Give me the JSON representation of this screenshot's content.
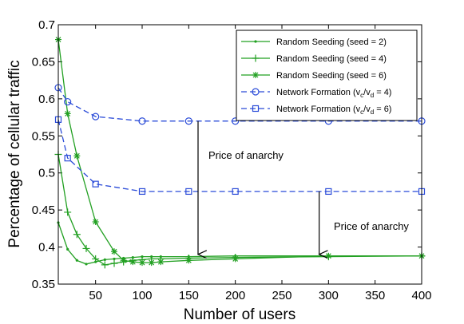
{
  "chart_data": {
    "type": "line",
    "xlabel": "Number of users",
    "ylabel": "Percentage of cellular traffic",
    "xlim": [
      10,
      400
    ],
    "ylim": [
      0.35,
      0.7
    ],
    "xticks": [
      50,
      100,
      150,
      200,
      250,
      300,
      350,
      400
    ],
    "yticks": [
      0.35,
      0.4,
      0.45,
      0.5,
      0.55,
      0.6,
      0.65,
      0.7
    ],
    "xtick_labels": [
      "50",
      "100",
      "150",
      "200",
      "250",
      "300",
      "350",
      "400"
    ],
    "ytick_labels": [
      "0.35",
      "0.4",
      "0.45",
      "0.5",
      "0.55",
      "0.6",
      "0.65",
      "0.7"
    ],
    "grid": false,
    "legend_position": "top-right",
    "colors": {
      "random": "#22a022",
      "network": "#2a4bd8"
    },
    "series": [
      {
        "name": "Random Seeding (seed = 2)",
        "style": "solid",
        "marker": "point",
        "color": "#22a022",
        "x": [
          10,
          20,
          30,
          40,
          50,
          60,
          70,
          80,
          90,
          100,
          110,
          120,
          150,
          200,
          300,
          400
        ],
        "y": [
          0.433,
          0.397,
          0.382,
          0.377,
          0.38,
          0.383,
          0.384,
          0.385,
          0.386,
          0.387,
          0.387,
          0.387,
          0.387,
          0.388,
          0.388,
          0.388
        ]
      },
      {
        "name": "Random Seeding (seed = 4)",
        "style": "solid",
        "marker": "plus",
        "color": "#22a022",
        "x": [
          10,
          20,
          30,
          40,
          50,
          60,
          70,
          80,
          90,
          100,
          110,
          120,
          150,
          200,
          300,
          400
        ],
        "y": [
          0.525,
          0.447,
          0.417,
          0.398,
          0.384,
          0.376,
          0.378,
          0.38,
          0.382,
          0.383,
          0.384,
          0.384,
          0.385,
          0.386,
          0.387,
          0.388
        ]
      },
      {
        "name": "Random Seeding (seed = 6)",
        "style": "solid",
        "marker": "star",
        "color": "#22a022",
        "x": [
          10,
          20,
          30,
          50,
          70,
          80,
          90,
          100,
          110,
          120,
          150,
          200,
          300,
          400
        ],
        "y": [
          0.68,
          0.58,
          0.523,
          0.434,
          0.394,
          0.382,
          0.38,
          0.379,
          0.379,
          0.38,
          0.382,
          0.384,
          0.388,
          0.388
        ]
      },
      {
        "name": "Network Formation (v_c/v_d = 4)",
        "style": "dashed",
        "marker": "circle",
        "color": "#2a4bd8",
        "x": [
          10,
          20,
          50,
          100,
          150,
          200,
          300,
          400
        ],
        "y": [
          0.615,
          0.596,
          0.576,
          0.57,
          0.57,
          0.57,
          0.57,
          0.57
        ]
      },
      {
        "name": "Network Formation (v_c/v_d = 6)",
        "style": "dashed",
        "marker": "square",
        "color": "#2a4bd8",
        "x": [
          10,
          20,
          50,
          100,
          150,
          200,
          300,
          400
        ],
        "y": [
          0.572,
          0.52,
          0.485,
          0.475,
          0.475,
          0.475,
          0.475,
          0.475
        ]
      }
    ],
    "legend_labels": [
      {
        "main": "Random Seeding (seed = 2)",
        "sub1": "",
        "mid": "",
        "sub2": "",
        "end": ""
      },
      {
        "main": "Random Seeding (seed = 4)",
        "sub1": "",
        "mid": "",
        "sub2": "",
        "end": ""
      },
      {
        "main": "Random Seeding (seed = 6)",
        "sub1": "",
        "mid": "",
        "sub2": "",
        "end": ""
      },
      {
        "main": "Network Formation (v",
        "sub1": "c",
        "mid": "/v",
        "sub2": "d",
        "end": " = 4)"
      },
      {
        "main": "Network Formation (v",
        "sub1": "c",
        "mid": "/v",
        "sub2": "d",
        "end": " = 6)"
      }
    ],
    "annotations": [
      {
        "text": "Price of anarchy",
        "arrow_x": 160,
        "arrow_y_from": 0.57,
        "arrow_y_to": 0.388
      },
      {
        "text": "Price of anarchy",
        "arrow_x": 290,
        "arrow_y_from": 0.475,
        "arrow_y_to": 0.388
      }
    ]
  }
}
